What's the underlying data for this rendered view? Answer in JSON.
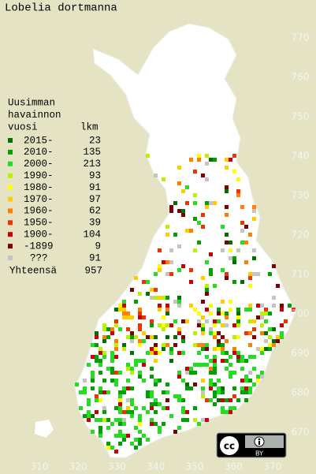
{
  "title": "Lobelia dortmanna",
  "legend": {
    "heading": [
      "Uusimman",
      "havainnon",
      "vuosi"
    ],
    "count_header": "lkm",
    "entries": [
      {
        "label": "2015-",
        "count": 23,
        "color": "#007000"
      },
      {
        "label": "2010-",
        "count": 135,
        "color": "#00a000"
      },
      {
        "label": "2000-",
        "count": 213,
        "color": "#22dd22"
      },
      {
        "label": "1990-",
        "count": 93,
        "color": "#bbf000"
      },
      {
        "label": "1980-",
        "count": 91,
        "color": "#ffff00"
      },
      {
        "label": "1970-",
        "count": 97,
        "color": "#ffcc00"
      },
      {
        "label": "1960-",
        "count": 62,
        "color": "#ff8000"
      },
      {
        "label": "1950-",
        "count": 39,
        "color": "#ee3300"
      },
      {
        "label": "1900-",
        "count": 104,
        "color": "#cc0000"
      },
      {
        "label": "-1899",
        "count": 9,
        "color": "#800000"
      },
      {
        "label": "???",
        "count": 91,
        "color": "#c4c4c4"
      }
    ],
    "total_label": "Yhteensä",
    "total": 957
  },
  "grid": {
    "xlim": [
      299.9,
      381.2
    ],
    "ylim": [
      659.4,
      779.6
    ],
    "xticks": [
      310,
      320,
      330,
      340,
      350,
      360,
      370
    ],
    "yticks": [
      670,
      680,
      690,
      700,
      710,
      720,
      730,
      740,
      750,
      760,
      770
    ]
  },
  "license": {
    "cc": "cc",
    "by": "BY"
  }
}
